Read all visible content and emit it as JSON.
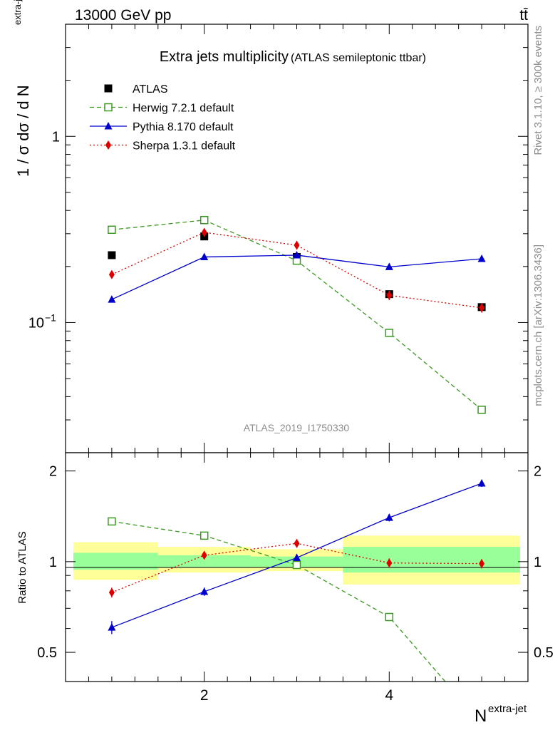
{
  "header": {
    "left_label": "13000 GeV pp",
    "right_label": "tt̄"
  },
  "side_labels": {
    "rivet": "Rivet 3.1.10, ≥ 300k events",
    "mcplots": "mcplots.cern.ch [arXiv:1306.3436]"
  },
  "chart_data": [
    {
      "type": "line",
      "title": "Extra jets multiplicity",
      "subtitle": "(ATLAS semileptonic ttbar)",
      "analysis_label": "ATLAS_2019_I1750330",
      "ylabel": "1 / σ dσ / d N",
      "ylabel_superscript": "extra-jet",
      "yscale": "log",
      "xlim": [
        0.5,
        5.5
      ],
      "ylim": [
        0.02,
        4.0
      ],
      "y_ticks": [
        {
          "value": 1.0,
          "label": "1"
        },
        {
          "value": 0.1,
          "label": "10",
          "exp": "−1"
        }
      ],
      "legend_position": "top-left",
      "x": [
        1,
        2,
        3,
        4,
        5
      ],
      "series": [
        {
          "name": "ATLAS",
          "color": "#000000",
          "marker": "square-filled",
          "line": "none",
          "values": [
            0.23,
            0.29,
            0.225,
            0.142,
            0.121
          ],
          "errors": [
            0.004,
            0.004,
            0.004,
            0.004,
            0.004
          ]
        },
        {
          "name": "Herwig 7.2.1 default",
          "color": "#3a9a1f",
          "marker": "square-open",
          "line": "dashed",
          "values": [
            0.315,
            0.355,
            0.215,
            0.088,
            0.034
          ],
          "errors": [
            0.004,
            0.004,
            0.004,
            0.002,
            0.0015
          ]
        },
        {
          "name": "Pythia 8.170 default",
          "color": "#0000cc",
          "marker": "triangle",
          "line": "solid",
          "values": [
            0.133,
            0.225,
            0.23,
            0.199,
            0.22
          ],
          "errors": [
            0.005,
            0.006,
            0.006,
            0.006,
            0.007
          ]
        },
        {
          "name": "Sherpa 1.3.1 default",
          "color": "#dd0000",
          "marker": "diamond",
          "line": "dotted",
          "values": [
            0.181,
            0.305,
            0.26,
            0.14,
            0.12
          ],
          "errors": [
            0.008,
            0.009,
            0.009,
            0.008,
            0.007
          ]
        }
      ]
    },
    {
      "type": "line",
      "ylabel": "Ratio to ATLAS",
      "xlabel": "N",
      "xlabel_superscript": "extra-jet",
      "xlim": [
        0.5,
        5.5
      ],
      "ylim": [
        0.4,
        2.3
      ],
      "x_ticks": [
        2,
        4
      ],
      "y_ticks": [
        {
          "value": 0.5,
          "label": "0.5"
        },
        {
          "value": 1,
          "label": "1"
        },
        {
          "value": 2,
          "label": "2"
        }
      ],
      "bands": [
        {
          "x0": 0.5,
          "x1": 1.5,
          "inner": [
            0.94,
            1.07
          ],
          "outer": [
            0.87,
            1.16
          ]
        },
        {
          "x0": 1.5,
          "x1": 2.5,
          "inner": [
            0.955,
            1.05
          ],
          "outer": [
            0.92,
            1.12
          ]
        },
        {
          "x0": 2.5,
          "x1": 3.5,
          "inner": [
            0.96,
            1.04
          ],
          "outer": [
            0.93,
            1.1
          ]
        },
        {
          "x0": 3.5,
          "x1": 5.5,
          "inner": [
            0.92,
            1.12
          ],
          "outer": [
            0.84,
            1.22
          ]
        }
      ],
      "x": [
        1,
        2,
        3,
        4,
        5
      ],
      "series": [
        {
          "name": "Herwig 7.2.1 default",
          "color": "#3a9a1f",
          "marker": "square-open",
          "line": "dashed",
          "values": [
            1.36,
            1.22,
            0.975,
            0.655,
            0.29
          ],
          "errors": [
            0.01,
            0.01,
            0.01,
            0.02,
            0.01
          ]
        },
        {
          "name": "Pythia 8.170 default",
          "color": "#0000cc",
          "marker": "triangle",
          "line": "solid",
          "values": [
            0.605,
            0.795,
            1.03,
            1.4,
            1.82
          ],
          "errors": [
            0.03,
            0.025,
            0.025,
            0.04,
            0.05
          ]
        },
        {
          "name": "Sherpa 1.3.1 default",
          "color": "#dd0000",
          "marker": "diamond",
          "line": "dotted",
          "values": [
            0.79,
            1.05,
            1.15,
            0.99,
            0.985
          ],
          "errors": [
            0.03,
            0.03,
            0.035,
            0.035,
            0.035
          ]
        }
      ]
    }
  ]
}
